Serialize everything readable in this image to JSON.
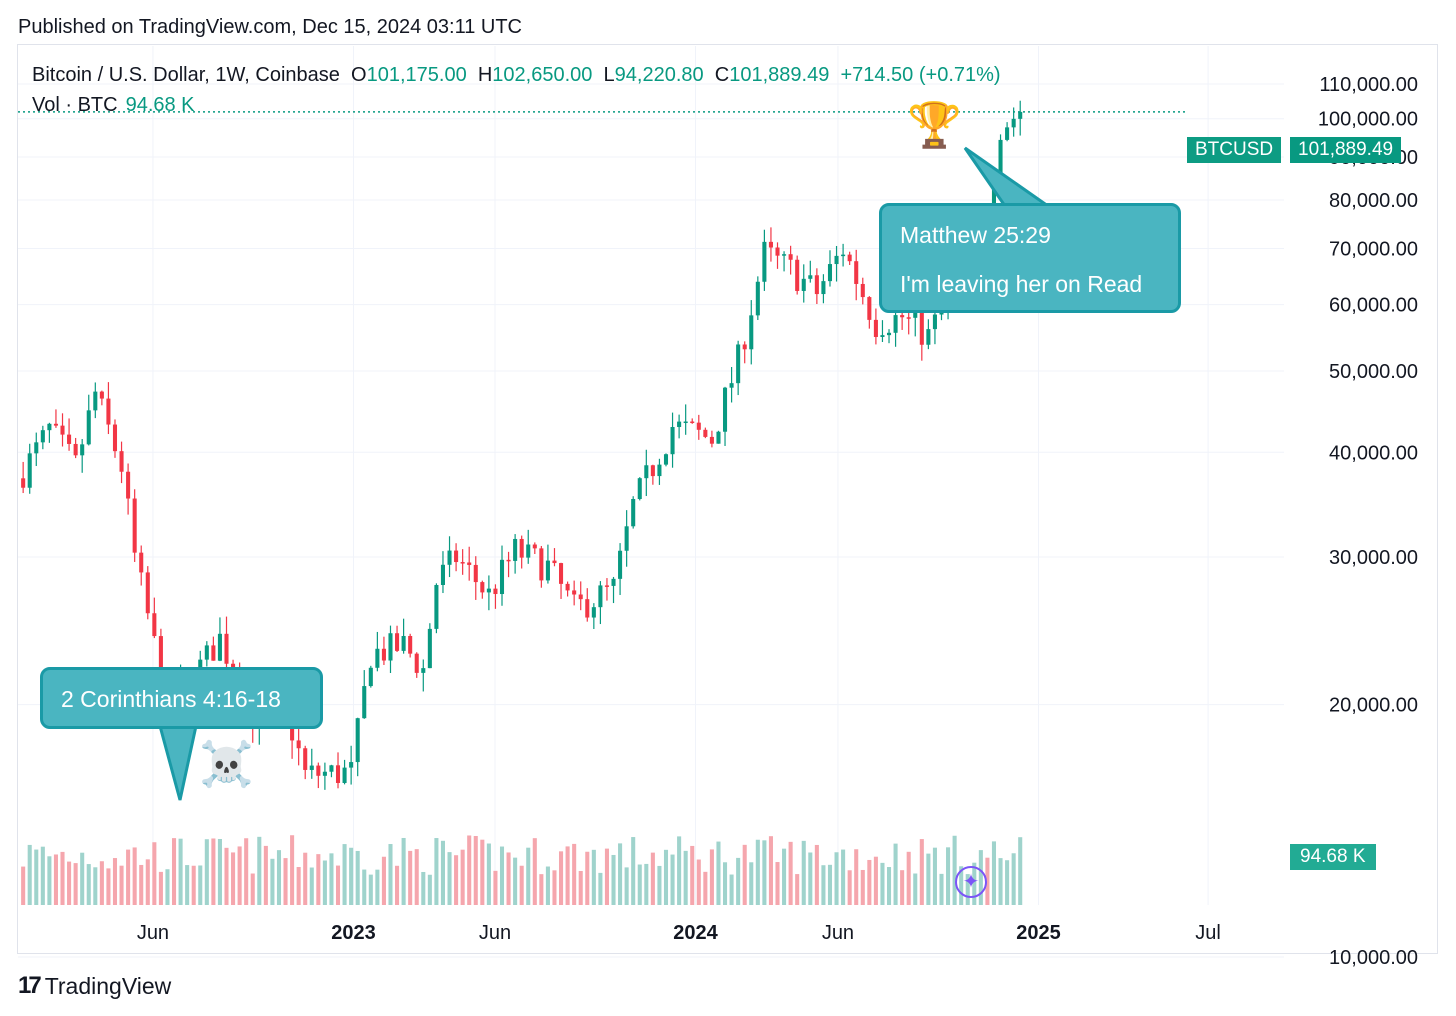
{
  "header": {
    "published": "Published on TradingView.com, Dec 15, 2024 03:11 UTC"
  },
  "legend": {
    "symbol": "Bitcoin / U.S. Dollar, 1W, Coinbase",
    "open_label": "O",
    "open": "101,175.00",
    "high_label": "H",
    "high": "102,650.00",
    "low_label": "L",
    "low": "94,220.80",
    "close_label": "C",
    "close": "101,889.49",
    "change": "+714.50 (+0.71%)",
    "vol_label": "Vol · BTC",
    "vol": "94.68 K"
  },
  "price_tag": {
    "symbol": "BTCUSD",
    "price": "101,889.49"
  },
  "vol_tag": "94.68 K",
  "annotations": {
    "callout_1": "2 Corinthians 4:16-18",
    "callout_2_line1": "Matthew 25:29",
    "callout_2_line2": "I'm leaving her on Read",
    "skull": "☠️",
    "trophy": "🏆"
  },
  "footer": {
    "brand": "TradingView",
    "brand_mark": "17"
  },
  "colors": {
    "up": "#089981",
    "down": "#f23645",
    "vol_up": "#9fd3cc",
    "vol_down": "#f5a6ad",
    "grid": "#f0f3fa",
    "callout": "#4ab5c1"
  },
  "chart_data": {
    "type": "candlestick",
    "title": "Bitcoin / U.S. Dollar, 1W, Coinbase",
    "y_ticks": [
      "10,000.00",
      "20,000.00",
      "30,000.00",
      "40,000.00",
      "50,000.00",
      "60,000.00",
      "70,000.00",
      "80,000.00",
      "90,000.00",
      "100,000.00",
      "110,000.00"
    ],
    "y_tick_values": [
      10000,
      20000,
      30000,
      40000,
      50000,
      60000,
      70000,
      80000,
      90000,
      100000,
      110000
    ],
    "ylim": [
      7000,
      115000
    ],
    "x_ticks": [
      {
        "label": "Jun",
        "date": "2022-06-01",
        "bold": false
      },
      {
        "label": "2023",
        "date": "2023-01-01",
        "bold": true
      },
      {
        "label": "Jun",
        "date": "2023-06-01",
        "bold": false
      },
      {
        "label": "2024",
        "date": "2024-01-01",
        "bold": true
      },
      {
        "label": "Jun",
        "date": "2024-06-01",
        "bold": false
      },
      {
        "label": "2025",
        "date": "2025-01-01",
        "bold": true
      },
      {
        "label": "Jul",
        "date": "2025-07-01",
        "bold": false
      }
    ],
    "xlim": [
      "2022-01-08",
      "2025-09-20"
    ],
    "first_week": "2022-01-10",
    "last_close": 101889.49,
    "close_path": [
      [
        "2022-01-10",
        38000
      ],
      [
        "2022-02-07",
        42500
      ],
      [
        "2022-03-07",
        38500
      ],
      [
        "2022-03-28",
        47000
      ],
      [
        "2022-04-25",
        38500
      ],
      [
        "2022-05-09",
        30000
      ],
      [
        "2022-06-13",
        20000
      ],
      [
        "2022-07-04",
        21000
      ],
      [
        "2022-08-08",
        24000
      ],
      [
        "2022-09-12",
        19500
      ],
      [
        "2022-10-17",
        19800
      ],
      [
        "2022-11-07",
        16500
      ],
      [
        "2022-12-26",
        16600
      ],
      [
        "2023-01-16",
        23000
      ],
      [
        "2023-02-20",
        23500
      ],
      [
        "2023-03-13",
        22000
      ],
      [
        "2023-03-27",
        28000
      ],
      [
        "2023-04-17",
        30000
      ],
      [
        "2023-05-22",
        27000
      ],
      [
        "2023-06-19",
        30500
      ],
      [
        "2023-07-24",
        29200
      ],
      [
        "2023-08-21",
        26000
      ],
      [
        "2023-10-02",
        27500
      ],
      [
        "2023-10-23",
        34500
      ],
      [
        "2023-12-04",
        43000
      ],
      [
        "2024-01-15",
        41500
      ],
      [
        "2024-02-12",
        51500
      ],
      [
        "2024-03-11",
        69000
      ],
      [
        "2024-04-08",
        66000
      ],
      [
        "2024-05-06",
        62000
      ],
      [
        "2024-06-03",
        70000
      ],
      [
        "2024-07-08",
        57000
      ],
      [
        "2024-08-05",
        58000
      ],
      [
        "2024-09-02",
        55000
      ],
      [
        "2024-10-14",
        68000
      ],
      [
        "2024-11-04",
        76000
      ],
      [
        "2024-11-18",
        98000
      ],
      [
        "2024-12-09",
        101889.49
      ]
    ],
    "volume_scale": "relative",
    "last_volume": "94.68 K"
  }
}
